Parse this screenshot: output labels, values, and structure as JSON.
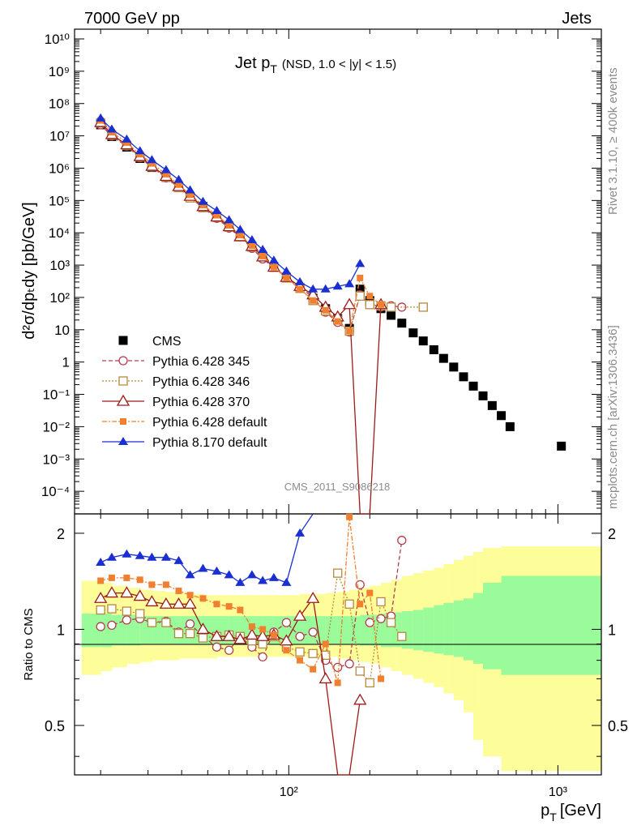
{
  "header": {
    "left": "7000 GeV pp",
    "right": "Jets"
  },
  "side_labels": {
    "top": "Rivet 3.1.10, ≥ 400k events",
    "bottom": "mcplots.cern.ch [arXiv:1306.3436]"
  },
  "chart_data": {
    "type": "line",
    "title_main": "Jet p",
    "title_sub": "T",
    "title_extra": "(NSD, 1.0 < |y| < 1.5)",
    "watermark": "CMS_2011_S9086218",
    "xlabel_main": "p",
    "xlabel_sub": "T",
    "xlabel_unit": "[GeV]",
    "ylabel": "d²σ/dpₜdy [pb/GeV]",
    "ylabel_ratio": "Ratio to CMS",
    "x_scale": "log",
    "y_scale": "log",
    "xlim": [
      16,
      1450
    ],
    "ylim": [
      2e-05,
      20000000000
    ],
    "ratio_ylim": [
      0.35,
      2.3
    ],
    "x_tick_labels": [
      "10²",
      "10³"
    ],
    "y_tick_labels": [
      "10⁻⁴",
      "10⁻³",
      "10⁻²",
      "10⁻¹",
      "1",
      "10",
      "10²",
      "10³",
      "10⁴",
      "10⁵",
      "10⁶",
      "10⁷",
      "10⁸",
      "10⁹",
      "10¹⁰"
    ],
    "ratio_tick_labels": [
      "0.5",
      "1",
      "2"
    ],
    "legend_position": "bottom-left",
    "x": [
      20,
      22,
      25,
      28,
      31,
      35,
      39,
      43,
      48,
      54,
      60,
      66,
      73,
      80,
      88,
      98,
      110,
      123,
      137,
      152,
      168,
      184,
      200,
      220,
      240,
      263,
      290,
      316,
      346,
      376,
      410,
      446,
      485,
      527,
      570,
      616,
      664,
      1030
    ],
    "series": [
      {
        "name": "CMS",
        "color": "#000000",
        "values": [
          22000000,
          9500000,
          4500000,
          2000000,
          1050000,
          520000,
          260000,
          130000,
          65000,
          32000,
          16000,
          8000,
          3800,
          1900,
          900,
          420,
          200,
          95,
          45,
          22,
          11,
          180,
          80,
          45,
          28,
          16,
          8,
          4.5,
          2.4,
          1.3,
          0.7,
          0.35,
          0.18,
          0.09,
          0.045,
          0.022,
          0.01,
          0.0025
        ]
      },
      {
        "name": "Pythia 6.428 345",
        "color": "#b33d4d",
        "x": [
          20,
          22,
          25,
          28,
          31,
          35,
          39,
          43,
          48,
          54,
          60,
          66,
          73,
          80,
          88,
          98,
          110,
          123,
          137,
          152,
          168,
          184,
          200,
          220,
          240,
          263
        ],
        "values": [
          22000000,
          9800000,
          4800000,
          2100000,
          1080000,
          500000,
          250000,
          125000,
          60000,
          28000,
          14000,
          7500,
          3300,
          1550,
          880,
          420,
          210,
          100,
          35,
          17,
          8.5,
          120,
          60,
          50,
          55,
          50
        ]
      },
      {
        "name": "Pythia 6.428 346",
        "color": "#b58a3e",
        "x": [
          20,
          22,
          25,
          28,
          31,
          35,
          39,
          43,
          48,
          54,
          60,
          66,
          73,
          80,
          88,
          98,
          110,
          123,
          137,
          152,
          168,
          184,
          200,
          220,
          240,
          316
        ],
        "values": [
          25000000,
          10500000,
          5000000,
          2200000,
          1100000,
          530000,
          250000,
          120000,
          60000,
          30000,
          15000,
          7500,
          3600,
          1800,
          850,
          400,
          190,
          80,
          38,
          20,
          9,
          110,
          60,
          55,
          50,
          50
        ]
      },
      {
        "name": "Pythia 6.428 370",
        "color": "#9c1a1a",
        "x": [
          20,
          22,
          25,
          28,
          31,
          35,
          39,
          43,
          48,
          54,
          60,
          66,
          73,
          80,
          88,
          98,
          110,
          123,
          137,
          152,
          168,
          184,
          200,
          220
        ],
        "values": [
          26000000,
          11000000,
          5300000,
          2300000,
          1150000,
          560000,
          270000,
          135000,
          65000,
          31000,
          15500,
          7600,
          3800,
          1800,
          870,
          420,
          220,
          120,
          50,
          25,
          60,
          2e-05,
          2e-05,
          60
        ]
      },
      {
        "name": "Pythia 6.428 default",
        "color": "#f08030",
        "x": [
          20,
          22,
          25,
          28,
          31,
          35,
          39,
          43,
          48,
          54,
          60,
          66,
          73,
          80,
          88,
          98,
          110,
          123,
          137,
          152,
          168,
          184,
          200,
          220
        ],
        "values": [
          30000000,
          13000000,
          6200000,
          2700000,
          1400000,
          650000,
          310000,
          150000,
          72000,
          35000,
          17000,
          8500,
          4000,
          1900,
          870,
          400,
          180,
          80,
          40,
          18,
          9,
          400,
          110,
          60
        ]
      },
      {
        "name": "Pythia 8.170 default",
        "color": "#1a2fd1",
        "x": [
          20,
          22,
          25,
          28,
          31,
          35,
          39,
          43,
          48,
          54,
          60,
          66,
          73,
          80,
          88,
          98,
          110,
          123,
          137,
          152,
          168,
          184
        ],
        "values": [
          35000000,
          16000000,
          7800000,
          3400000,
          1800000,
          880000,
          440000,
          210000,
          92000,
          48000,
          25000,
          12500,
          6000,
          3000,
          1400,
          640,
          300,
          180,
          180,
          220,
          260,
          1100
        ]
      }
    ],
    "ratio": {
      "x": [
        20,
        22,
        25,
        28,
        31,
        35,
        39,
        43,
        48,
        54,
        60,
        66,
        73,
        80,
        88,
        98,
        110,
        123,
        137,
        152,
        168,
        184,
        200,
        220,
        240,
        263,
        290,
        316
      ],
      "series": [
        {
          "name": "Pythia 6.428 345",
          "color": "#b33d4d",
          "values": [
            1.02,
            1.03,
            1.07,
            1.08,
            1.05,
            1.06,
            0.98,
            1.04,
            0.95,
            0.88,
            0.86,
            0.95,
            0.88,
            0.82,
            0.98,
            1.05,
            0.95,
            0.98,
            0.8,
            0.76,
            0.78,
            1.38,
            1.05,
            1.08,
            1.1,
            1.9
          ]
        },
        {
          "name": "Pythia 6.428 346",
          "color": "#b58a3e",
          "values": [
            1.15,
            1.16,
            1.14,
            1.12,
            1.05,
            1.05,
            0.97,
            0.97,
            0.94,
            0.95,
            0.96,
            0.95,
            0.92,
            0.9,
            0.95,
            0.88,
            0.85,
            0.84,
            0.83,
            1.5,
            1.2,
            0.74,
            0.68,
            1.22,
            1.05,
            0.95
          ]
        },
        {
          "name": "Pythia 6.428 370",
          "color": "#9c1a1a",
          "values": [
            1.25,
            1.3,
            1.3,
            1.27,
            1.22,
            1.2,
            1.2,
            1.2,
            1.0,
            0.95,
            0.95,
            0.93,
            0.96,
            0.95,
            0.96,
            0.92,
            1.1,
            1.25,
            0.7,
            0.2,
            0.1,
            0.6
          ]
        },
        {
          "name": "Pythia 6.428 default",
          "color": "#f08030",
          "values": [
            1.42,
            1.45,
            1.45,
            1.43,
            1.38,
            1.38,
            1.32,
            1.28,
            1.25,
            1.2,
            1.18,
            1.15,
            1.02,
            1.0,
            0.96,
            0.86,
            0.8,
            0.75,
            0.9,
            0.68,
            2.25,
            1.2,
            1.3,
            0.7
          ]
        },
        {
          "name": "Pythia 8.170 default",
          "color": "#1a2fd1",
          "values": [
            1.62,
            1.68,
            1.72,
            1.7,
            1.68,
            1.68,
            1.64,
            1.48,
            1.55,
            1.52,
            1.48,
            1.4,
            1.48,
            1.42,
            1.45,
            1.4,
            2.0,
            3.0
          ]
        }
      ],
      "band_inner": [
        [
          0.88,
          1.12
        ],
        [
          0.88,
          1.12
        ],
        [
          0.89,
          1.11
        ],
        [
          0.89,
          1.11
        ],
        [
          0.9,
          1.1
        ],
        [
          0.9,
          1.1
        ],
        [
          0.9,
          1.1
        ],
        [
          0.9,
          1.1
        ],
        [
          0.9,
          1.1
        ],
        [
          0.9,
          1.1
        ],
        [
          0.9,
          1.1
        ],
        [
          0.9,
          1.1
        ],
        [
          0.9,
          1.1
        ],
        [
          0.9,
          1.1
        ],
        [
          0.9,
          1.1
        ],
        [
          0.9,
          1.1
        ],
        [
          0.9,
          1.1
        ],
        [
          0.9,
          1.1
        ],
        [
          0.9,
          1.1
        ],
        [
          0.9,
          1.1
        ],
        [
          0.9,
          1.1
        ],
        [
          0.9,
          1.1
        ],
        [
          0.89,
          1.11
        ],
        [
          0.89,
          1.11
        ],
        [
          0.88,
          1.12
        ],
        [
          0.88,
          1.13
        ],
        [
          0.87,
          1.14
        ],
        [
          0.86,
          1.15
        ],
        [
          0.85,
          1.17
        ],
        [
          0.84,
          1.19
        ],
        [
          0.83,
          1.21
        ],
        [
          0.82,
          1.23
        ],
        [
          0.8,
          1.25
        ],
        [
          0.78,
          1.3
        ],
        [
          0.75,
          1.4
        ],
        [
          0.72,
          1.47
        ],
        [
          0.7,
          1.48
        ]
      ],
      "band_outer": [
        [
          0.72,
          1.42
        ],
        [
          0.74,
          1.4
        ],
        [
          0.76,
          1.37
        ],
        [
          0.78,
          1.35
        ],
        [
          0.79,
          1.33
        ],
        [
          0.8,
          1.32
        ],
        [
          0.8,
          1.31
        ],
        [
          0.81,
          1.3
        ],
        [
          0.81,
          1.29
        ],
        [
          0.81,
          1.28
        ],
        [
          0.82,
          1.28
        ],
        [
          0.82,
          1.28
        ],
        [
          0.82,
          1.28
        ],
        [
          0.82,
          1.28
        ],
        [
          0.82,
          1.28
        ],
        [
          0.82,
          1.28
        ],
        [
          0.82,
          1.28
        ],
        [
          0.82,
          1.29
        ],
        [
          0.82,
          1.29
        ],
        [
          0.82,
          1.3
        ],
        [
          0.81,
          1.31
        ],
        [
          0.8,
          1.33
        ],
        [
          0.79,
          1.35
        ],
        [
          0.78,
          1.37
        ],
        [
          0.76,
          1.4
        ],
        [
          0.74,
          1.43
        ],
        [
          0.72,
          1.47
        ],
        [
          0.7,
          1.5
        ],
        [
          0.68,
          1.53
        ],
        [
          0.66,
          1.56
        ],
        [
          0.63,
          1.6
        ],
        [
          0.6,
          1.65
        ],
        [
          0.55,
          1.7
        ],
        [
          0.45,
          1.75
        ],
        [
          0.4,
          1.8
        ],
        [
          0.36,
          1.82
        ],
        [
          0.35,
          1.82
        ]
      ],
      "band_x": [
        17,
        20,
        22,
        25,
        28,
        31,
        35,
        39,
        43,
        48,
        54,
        60,
        66,
        73,
        80,
        88,
        98,
        110,
        123,
        137,
        152,
        168,
        184,
        200,
        220,
        240,
        263,
        290,
        316,
        346,
        376,
        410,
        446,
        485,
        527,
        616,
        1450
      ]
    }
  }
}
